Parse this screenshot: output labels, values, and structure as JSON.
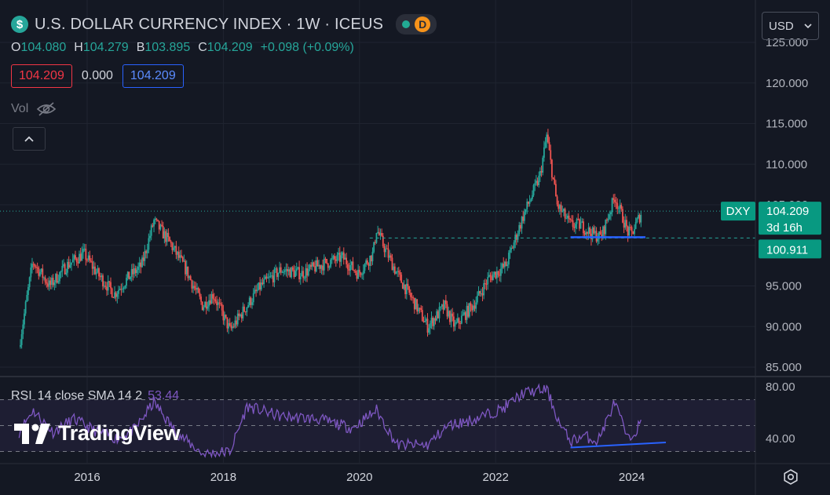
{
  "header": {
    "symbol_badge": "$",
    "title": "U.S. DOLLAR CURRENCY INDEX · 1W · ICEUS",
    "market_badge": "D"
  },
  "ohlc": {
    "o_label": "O",
    "o_value": "104.080",
    "h_label": "H",
    "h_value": "104.279",
    "b_label": "B",
    "b_value": "103.895",
    "c_label": "C",
    "c_value": "104.209",
    "change": "+0.098 (+0.09%)"
  },
  "price_boxes": {
    "sell": "104.209",
    "spread": "0.000",
    "buy": "104.209"
  },
  "volume": {
    "label": "Vol"
  },
  "currency": {
    "label": "USD"
  },
  "rsi_legend": {
    "label": "RSI",
    "params": "14 close SMA 14 2",
    "value": "53.44"
  },
  "branding": {
    "logo_text": "TradingView"
  },
  "colors": {
    "up": "#26a69a",
    "down": "#ef5350",
    "rsi": "#7e57c2",
    "trendline": "#2962ff",
    "price_tag": "#089981"
  },
  "chart_data": [
    {
      "type": "candlestick",
      "symbol": "DXY",
      "interval": "1W",
      "last_price": 104.209,
      "last_price_label": "104.209",
      "countdown": "3d 16h",
      "horizontal_level": 100.911,
      "horizontal_level_label": "100.911",
      "ylim": [
        84,
        126
      ],
      "y_ticks": [
        "85.000",
        "90.000",
        "95.000",
        "100.000",
        "105.000",
        "110.000",
        "115.000",
        "120.000",
        "125.000"
      ],
      "x_ticks": [
        "2016",
        "2018",
        "2020",
        "2022",
        "2024"
      ],
      "anchors": [
        {
          "t": 2015.0,
          "p": 87.5
        },
        {
          "t": 2015.2,
          "p": 98.0
        },
        {
          "t": 2015.45,
          "p": 95.0
        },
        {
          "t": 2015.7,
          "p": 97.5
        },
        {
          "t": 2015.95,
          "p": 99.0
        },
        {
          "t": 2016.15,
          "p": 96.5
        },
        {
          "t": 2016.4,
          "p": 94.0
        },
        {
          "t": 2016.6,
          "p": 96.0
        },
        {
          "t": 2016.8,
          "p": 97.5
        },
        {
          "t": 2016.98,
          "p": 103.0
        },
        {
          "t": 2017.2,
          "p": 100.5
        },
        {
          "t": 2017.45,
          "p": 97.0
        },
        {
          "t": 2017.7,
          "p": 92.5
        },
        {
          "t": 2017.85,
          "p": 94.0
        },
        {
          "t": 2018.1,
          "p": 89.5
        },
        {
          "t": 2018.3,
          "p": 92.0
        },
        {
          "t": 2018.55,
          "p": 95.0
        },
        {
          "t": 2018.85,
          "p": 97.0
        },
        {
          "t": 2019.15,
          "p": 96.5
        },
        {
          "t": 2019.4,
          "p": 97.5
        },
        {
          "t": 2019.75,
          "p": 98.5
        },
        {
          "t": 2019.98,
          "p": 96.5
        },
        {
          "t": 2020.2,
          "p": 99.0
        },
        {
          "t": 2020.25,
          "p": 102.0
        },
        {
          "t": 2020.35,
          "p": 100.0
        },
        {
          "t": 2020.55,
          "p": 96.5
        },
        {
          "t": 2020.8,
          "p": 93.0
        },
        {
          "t": 2021.0,
          "p": 90.0
        },
        {
          "t": 2021.25,
          "p": 92.5
        },
        {
          "t": 2021.4,
          "p": 90.0
        },
        {
          "t": 2021.7,
          "p": 93.0
        },
        {
          "t": 2021.9,
          "p": 96.0
        },
        {
          "t": 2022.15,
          "p": 97.5
        },
        {
          "t": 2022.4,
          "p": 103.5
        },
        {
          "t": 2022.65,
          "p": 108.5
        },
        {
          "t": 2022.75,
          "p": 113.5
        },
        {
          "t": 2022.9,
          "p": 105.0
        },
        {
          "t": 2023.1,
          "p": 102.5
        },
        {
          "t": 2023.25,
          "p": 102.5
        },
        {
          "t": 2023.4,
          "p": 101.5
        },
        {
          "t": 2023.55,
          "p": 101.0
        },
        {
          "t": 2023.75,
          "p": 106.0
        },
        {
          "t": 2023.95,
          "p": 101.5
        },
        {
          "t": 2024.0,
          "p": 101.5
        },
        {
          "t": 2024.15,
          "p": 104.2
        }
      ],
      "support_line": {
        "from": [
          2023.1,
          101.0
        ],
        "to": [
          2024.2,
          101.0
        ]
      }
    },
    {
      "type": "line",
      "name": "RSI",
      "ylim": [
        25,
        85
      ],
      "y_ticks": [
        "80.00",
        "40.00"
      ],
      "bands": [
        70,
        50,
        30
      ],
      "anchors": [
        {
          "t": 2015.0,
          "v": 45
        },
        {
          "t": 2015.2,
          "v": 62
        },
        {
          "t": 2015.5,
          "v": 45
        },
        {
          "t": 2015.8,
          "v": 55
        },
        {
          "t": 2016.15,
          "v": 45
        },
        {
          "t": 2016.45,
          "v": 40
        },
        {
          "t": 2016.7,
          "v": 47
        },
        {
          "t": 2016.98,
          "v": 68
        },
        {
          "t": 2017.3,
          "v": 45
        },
        {
          "t": 2017.7,
          "v": 28
        },
        {
          "t": 2018.1,
          "v": 30
        },
        {
          "t": 2018.35,
          "v": 65
        },
        {
          "t": 2018.85,
          "v": 57
        },
        {
          "t": 2019.4,
          "v": 55
        },
        {
          "t": 2019.9,
          "v": 48
        },
        {
          "t": 2020.25,
          "v": 62
        },
        {
          "t": 2020.55,
          "v": 35
        },
        {
          "t": 2021.0,
          "v": 35
        },
        {
          "t": 2021.3,
          "v": 50
        },
        {
          "t": 2021.7,
          "v": 55
        },
        {
          "t": 2022.1,
          "v": 63
        },
        {
          "t": 2022.4,
          "v": 75
        },
        {
          "t": 2022.75,
          "v": 78
        },
        {
          "t": 2022.95,
          "v": 50
        },
        {
          "t": 2023.1,
          "v": 38
        },
        {
          "t": 2023.3,
          "v": 42
        },
        {
          "t": 2023.5,
          "v": 38
        },
        {
          "t": 2023.75,
          "v": 68
        },
        {
          "t": 2023.95,
          "v": 38
        },
        {
          "t": 2024.15,
          "v": 53.44
        }
      ],
      "trendline": {
        "from": [
          2023.1,
          33
        ],
        "to": [
          2024.5,
          37
        ]
      }
    }
  ]
}
